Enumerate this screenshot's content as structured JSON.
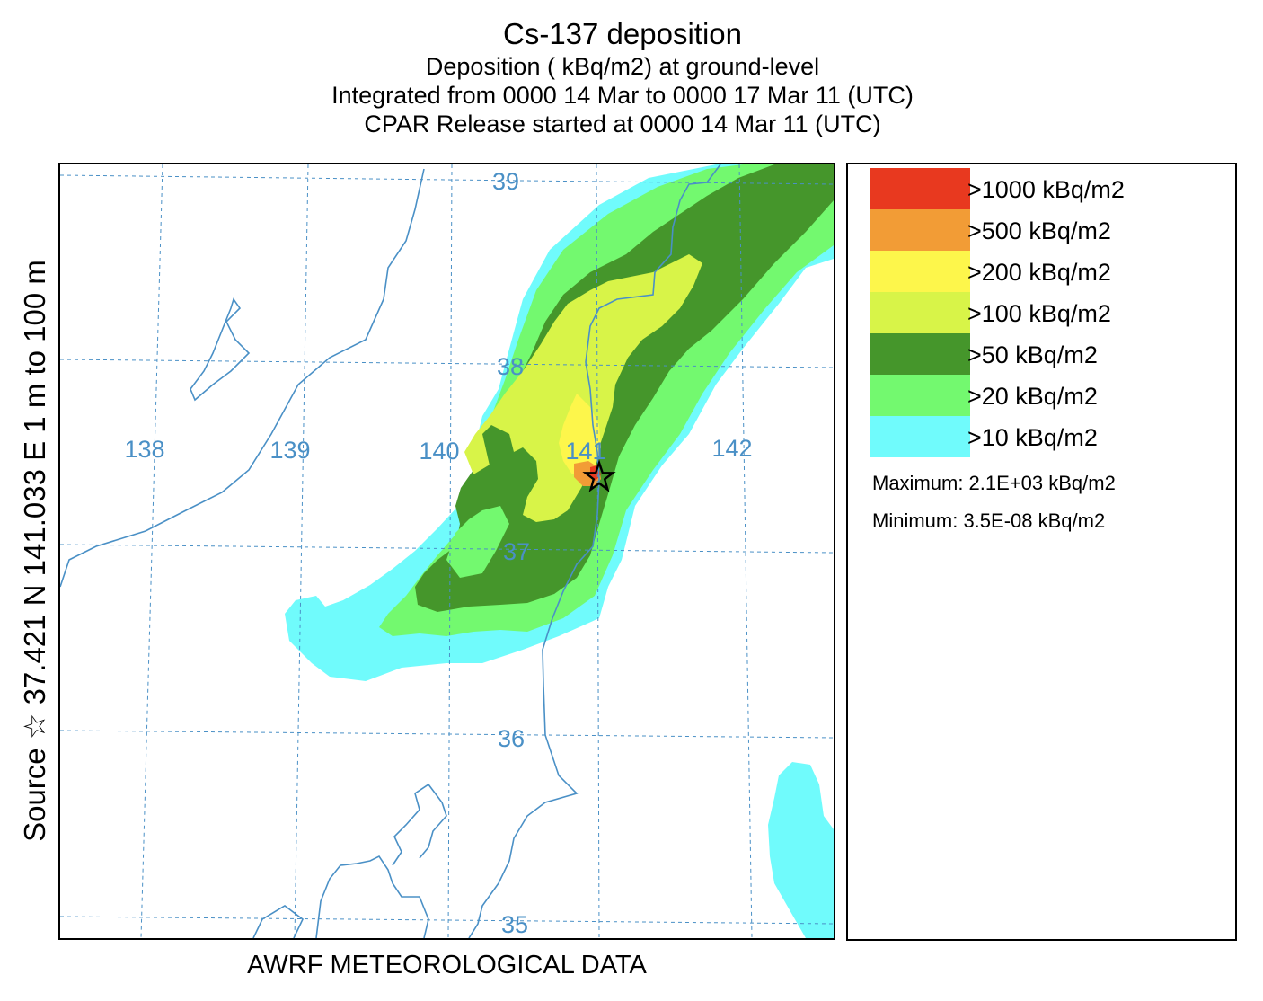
{
  "title": {
    "main": "Cs-137 deposition",
    "line2": "Deposition  ( kBq/m2) at ground-level",
    "line3": "Integrated from 0000 14 Mar to 0000 17 Mar 11 (UTC)",
    "line4": "CPAR Release started at 0000 14 Mar 11 (UTC)"
  },
  "side_label": "Source ☆ 37.421  N 141.033  E       1 m to   100 m",
  "footer": "AWRF METEOROLOGICAL DATA",
  "map": {
    "lat_labels": [
      "39",
      "38",
      "37",
      "36",
      "35"
    ],
    "lon_labels": [
      "138",
      "139",
      "140",
      "141",
      "142"
    ],
    "source_marker": "star-icon"
  },
  "legend": {
    "levels": [
      {
        "label": ">1000  kBq/m2",
        "color": "#e8391f"
      },
      {
        "label": ">500  kBq/m2",
        "color": "#f29c36"
      },
      {
        "label": ">200  kBq/m2",
        "color": "#fdf64b"
      },
      {
        "label": ">100  kBq/m2",
        "color": "#d8f448"
      },
      {
        "label": ">50  kBq/m2",
        "color": "#45962b"
      },
      {
        "label": ">20  kBq/m2",
        "color": "#73f96f"
      },
      {
        "label": ">10  kBq/m2",
        "color": "#70fbfc"
      }
    ],
    "maximum": "Maximum: 2.1E+03  kBq/m2",
    "minimum": "Minimum: 3.5E-08  kBq/m2"
  }
}
